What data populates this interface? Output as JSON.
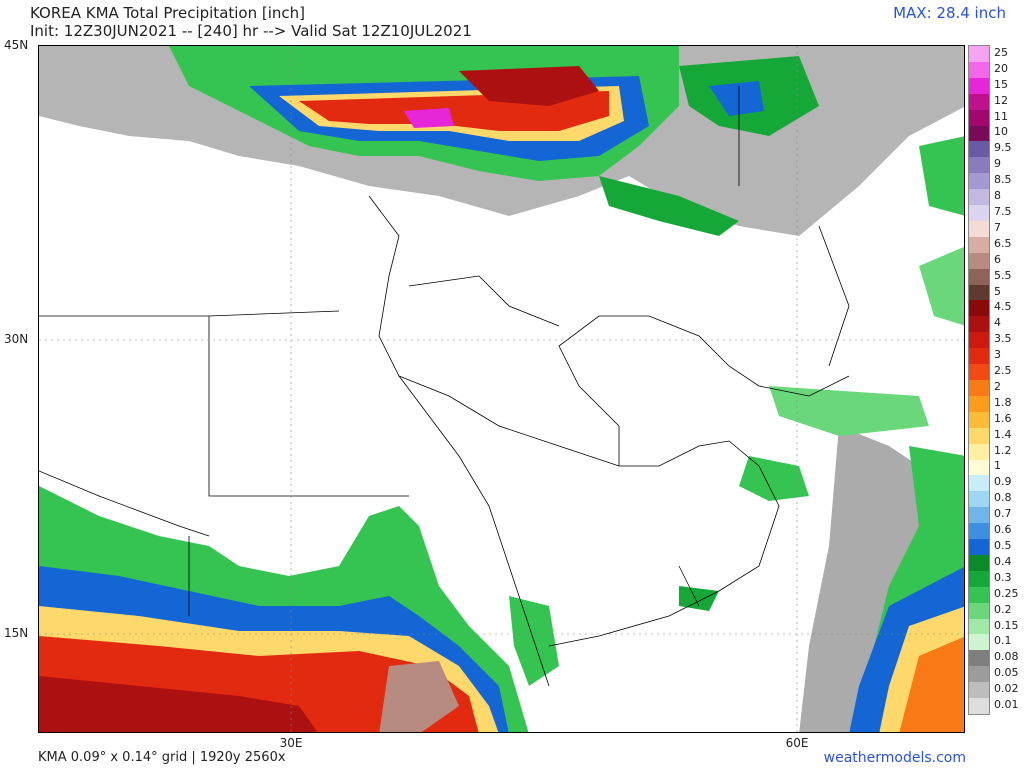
{
  "header": {
    "title_line1": "KOREA KMA Total Precipitation [inch]",
    "title_line2": "Init: 12Z30JUN2021 -- [240] hr --> Valid Sat 12Z10JUL2021",
    "max_label": "MAX: 28.4 inch"
  },
  "axes": {
    "lat_labels": [
      "45N",
      "30N",
      "15N"
    ],
    "lon_labels": [
      "30E",
      "60E"
    ]
  },
  "legend": {
    "items": [
      {
        "label": "25",
        "color": "#f7a3f2"
      },
      {
        "label": "20",
        "color": "#f266e8"
      },
      {
        "label": "15",
        "color": "#e527d9"
      },
      {
        "label": "12",
        "color": "#c0108e"
      },
      {
        "label": "11",
        "color": "#a0086f"
      },
      {
        "label": "10",
        "color": "#7a0a5a"
      },
      {
        "label": "9.5",
        "color": "#6a5aa6"
      },
      {
        "label": "9",
        "color": "#8a7bc0"
      },
      {
        "label": "8.5",
        "color": "#a698d0"
      },
      {
        "label": "8",
        "color": "#c3b8e0"
      },
      {
        "label": "7.5",
        "color": "#ddd4ee"
      },
      {
        "label": "7",
        "color": "#f2dcd5"
      },
      {
        "label": "6.5",
        "color": "#d6aea4"
      },
      {
        "label": "6",
        "color": "#b78b80"
      },
      {
        "label": "5.5",
        "color": "#8e6459"
      },
      {
        "label": "5",
        "color": "#5e3a2e"
      },
      {
        "label": "4.5",
        "color": "#8a0a0a"
      },
      {
        "label": "4",
        "color": "#ad1010"
      },
      {
        "label": "3.5",
        "color": "#cc1a10"
      },
      {
        "label": "3",
        "color": "#e22a10"
      },
      {
        "label": "2.5",
        "color": "#f14a12"
      },
      {
        "label": "2",
        "color": "#f77a15"
      },
      {
        "label": "1.8",
        "color": "#fb9d1a"
      },
      {
        "label": "1.6",
        "color": "#fcbc3a"
      },
      {
        "label": "1.4",
        "color": "#fdd86a"
      },
      {
        "label": "1.2",
        "color": "#fdf0a3"
      },
      {
        "label": "1",
        "color": "#fefbd5"
      },
      {
        "label": "0.9",
        "color": "#c9ecf7"
      },
      {
        "label": "0.8",
        "color": "#9fd6f2"
      },
      {
        "label": "0.7",
        "color": "#6fb5ea"
      },
      {
        "label": "0.6",
        "color": "#3e8fe0"
      },
      {
        "label": "0.5",
        "color": "#1466d4"
      },
      {
        "label": "0.4",
        "color": "#0a8a2a"
      },
      {
        "label": "0.3",
        "color": "#15a838"
      },
      {
        "label": "0.25",
        "color": "#35c452"
      },
      {
        "label": "0.2",
        "color": "#6ad87a"
      },
      {
        "label": "0.15",
        "color": "#a0e8a5"
      },
      {
        "label": "0.1",
        "color": "#cff5d0"
      },
      {
        "label": "0.08",
        "color": "#7f7f7f"
      },
      {
        "label": "0.05",
        "color": "#9c9c9c"
      },
      {
        "label": "0.02",
        "color": "#bdbdbd"
      },
      {
        "label": "0.01",
        "color": "#dedede"
      }
    ]
  },
  "footer": {
    "grid_info": "KMA 0.09° x 0.14° grid | 1920y 2560x",
    "site": "weathermodels.com"
  }
}
